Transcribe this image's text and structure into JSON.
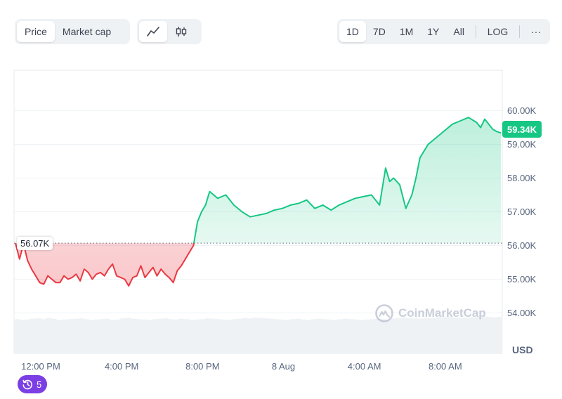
{
  "toolbar": {
    "metric_options": [
      "Price",
      "Market cap"
    ],
    "metric_selected": "Price",
    "chart_type_icons": [
      "line-chart-icon",
      "candlestick-icon"
    ],
    "range_options": [
      "1D",
      "7D",
      "1M",
      "1Y",
      "All"
    ],
    "range_selected": "1D",
    "log_label": "LOG",
    "more_label": "···"
  },
  "chart_data": {
    "type": "area",
    "title": "",
    "xlabel": "",
    "ylabel": "USD",
    "x_tick_labels": [
      "12:00 PM",
      "4:00 PM",
      "8:00 PM",
      "8 Aug",
      "4:00 AM",
      "8:00 AM"
    ],
    "x_tick_hours": [
      1.25,
      5.25,
      9.25,
      13.25,
      17.25,
      21.25
    ],
    "y_ticks": [
      54000,
      55000,
      56000,
      57000,
      58000,
      59000,
      60000
    ],
    "y_tick_labels": [
      "54.00K",
      "55.00K",
      "56.00K",
      "57.00K",
      "58.00K",
      "59.00K",
      "60.00K"
    ],
    "ylim": [
      52800,
      61200
    ],
    "baseline": 56070,
    "baseline_label": "56.07K",
    "last_price": 59340,
    "last_price_label": "59.34K",
    "colors": {
      "up": "#16c784",
      "down": "#ea3943",
      "up_fill": "#16c784",
      "down_fill": "#ea3943",
      "volume": "#eff2f5"
    },
    "x_hours": [
      0,
      0.2,
      0.4,
      0.6,
      0.8,
      1.0,
      1.2,
      1.4,
      1.6,
      1.8,
      2.0,
      2.2,
      2.4,
      2.6,
      2.8,
      3.0,
      3.2,
      3.4,
      3.6,
      3.8,
      4.0,
      4.2,
      4.4,
      4.6,
      4.8,
      5.0,
      5.2,
      5.4,
      5.6,
      5.8,
      6.0,
      6.2,
      6.4,
      6.6,
      6.8,
      7.0,
      7.2,
      7.4,
      7.6,
      7.8,
      8.0,
      8.2,
      8.4,
      8.6,
      8.8,
      9.0,
      9.2,
      9.4,
      9.6,
      9.8,
      10.0,
      10.4,
      10.8,
      11.2,
      11.6,
      12.0,
      12.4,
      12.8,
      13.2,
      13.6,
      14.0,
      14.4,
      14.8,
      15.2,
      15.6,
      16.0,
      16.4,
      16.8,
      17.2,
      17.6,
      18.0,
      18.3,
      18.5,
      18.7,
      19.0,
      19.3,
      19.6,
      19.8,
      20.0,
      20.4,
      20.8,
      21.2,
      21.6,
      22.0,
      22.4,
      22.8,
      23.0,
      23.2,
      23.4,
      23.6,
      23.8,
      24.0
    ],
    "prices": [
      56070,
      55600,
      56050,
      55550,
      55300,
      55100,
      54900,
      54850,
      55100,
      55000,
      54900,
      54900,
      55100,
      55000,
      55050,
      55150,
      54950,
      55300,
      55200,
      55000,
      55150,
      55200,
      55100,
      55300,
      55450,
      55100,
      55050,
      55000,
      54800,
      55050,
      55100,
      55400,
      55050,
      55200,
      55350,
      55100,
      55300,
      55150,
      55050,
      54900,
      55250,
      55400,
      55600,
      55800,
      56000,
      56700,
      57000,
      57200,
      57600,
      57500,
      57400,
      57500,
      57200,
      57000,
      56850,
      56900,
      56950,
      57050,
      57100,
      57200,
      57250,
      57350,
      57100,
      57200,
      57050,
      57200,
      57300,
      57400,
      57450,
      57500,
      57200,
      58300,
      57900,
      58000,
      57800,
      57100,
      57500,
      58000,
      58600,
      59000,
      59200,
      59400,
      59600,
      59700,
      59800,
      59650,
      59500,
      59750,
      59600,
      59450,
      59380,
      59340
    ],
    "volume": [
      0.92,
      0.9,
      0.91,
      0.93,
      0.94,
      0.92,
      0.95,
      0.93,
      0.9,
      0.91,
      0.92,
      0.93,
      0.94,
      0.92,
      0.9,
      0.91,
      0.92,
      0.93,
      0.9,
      0.91,
      0.94,
      0.95,
      0.93,
      0.92,
      0.91,
      0.9,
      0.92,
      0.93,
      0.94,
      0.92,
      0.91,
      0.93,
      0.92,
      0.9,
      0.91,
      0.92,
      0.94,
      0.93,
      0.92,
      0.91,
      0.9,
      0.92,
      0.93,
      0.95,
      0.94,
      0.96,
      0.95,
      0.94,
      0.93,
      0.92,
      0.91,
      0.9,
      0.92,
      0.93,
      0.91,
      0.9,
      0.92,
      0.93,
      0.92,
      0.91,
      0.9,
      0.92,
      0.93,
      0.92,
      0.91,
      0.9,
      0.91,
      0.92,
      0.93,
      0.92,
      0.91,
      0.94,
      0.95,
      0.96,
      0.95,
      0.94,
      0.93,
      0.94,
      0.95,
      0.96,
      0.97,
      0.98,
      0.97,
      0.96,
      0.95,
      0.96,
      0.97,
      0.98,
      0.99,
      0.98,
      0.97,
      0.98
    ]
  },
  "watermark": {
    "text": "CoinMarketCap"
  },
  "events": {
    "count": "5"
  }
}
